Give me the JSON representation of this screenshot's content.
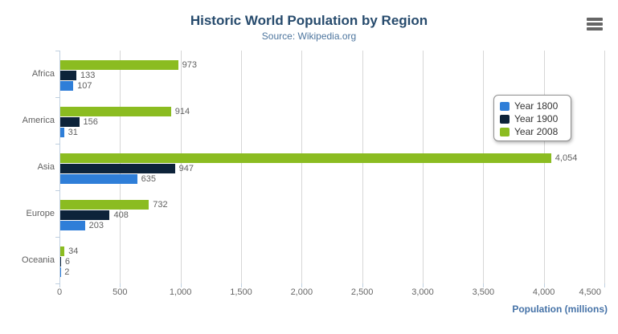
{
  "title": "Historic World Population by Region",
  "subtitle": "Source: Wikipedia.org",
  "icons": {
    "menu": "hamburger-menu-icon"
  },
  "chart_data": {
    "type": "bar",
    "categories": [
      "Africa",
      "America",
      "Asia",
      "Europe",
      "Oceania"
    ],
    "series": [
      {
        "name": "Year 1800",
        "color": "#2f7ed8",
        "values": [
          107,
          31,
          635,
          203,
          2
        ]
      },
      {
        "name": "Year 1900",
        "color": "#0d233a",
        "values": [
          133,
          156,
          947,
          408,
          6
        ]
      },
      {
        "name": "Year 2008",
        "color": "#8bbc21",
        "values": [
          973,
          914,
          4054,
          732,
          34
        ]
      }
    ],
    "title": "Historic World Population by Region",
    "subtitle": "Source: Wikipedia.org",
    "xlabel": "Population (millions)",
    "ylabel": "",
    "xlim": [
      0,
      4500
    ],
    "x_ticks": [
      "0",
      "500",
      "1,000",
      "1,500",
      "2,000",
      "2,500",
      "3,000",
      "3,500",
      "4,000",
      "4,500"
    ],
    "grid": true,
    "legend_position": "right",
    "bar_order_top_to_bottom": [
      "Year 2008",
      "Year 1900",
      "Year 1800"
    ],
    "data_label_color": "#606060",
    "axis_title_color": "#4572A7",
    "title_color": "#274b6d"
  }
}
